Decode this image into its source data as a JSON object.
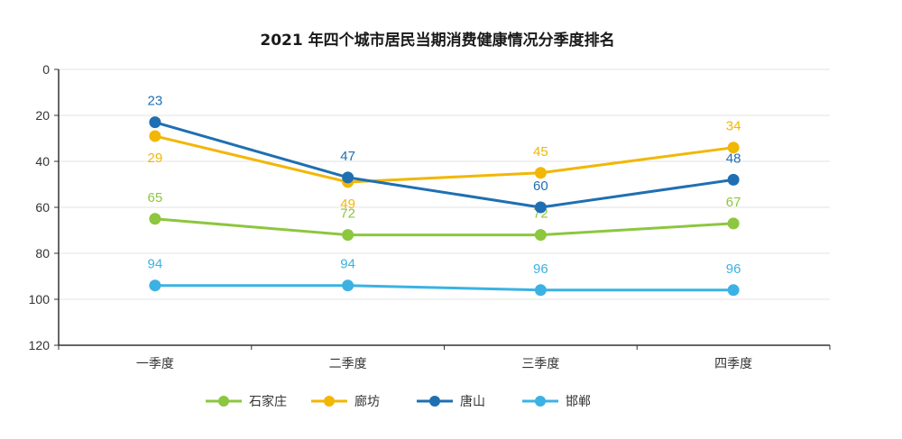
{
  "chart_data": {
    "type": "line",
    "title": "2021 年四个城市居民当期消费健康情况分季度排名",
    "xlabel": "",
    "ylabel": "",
    "categories": [
      "一季度",
      "二季度",
      "三季度",
      "四季度"
    ],
    "ylim": [
      0,
      120
    ],
    "y_inverted": true,
    "yticks": [
      0,
      20,
      40,
      60,
      80,
      100,
      120
    ],
    "grid": true,
    "legend_position": "bottom",
    "series": [
      {
        "name": "石家庄",
        "color": "#8dc63f",
        "values": [
          65,
          72,
          72,
          67
        ],
        "label_pos": [
          "above",
          "above",
          "above",
          "above"
        ]
      },
      {
        "name": "廊坊",
        "color": "#f2b705",
        "values": [
          29,
          49,
          45,
          34
        ],
        "label_pos": [
          "below",
          "below",
          "above",
          "above"
        ]
      },
      {
        "name": "唐山",
        "color": "#1f6fb2",
        "values": [
          23,
          47,
          60,
          48
        ],
        "label_pos": [
          "above",
          "above",
          "above",
          "above"
        ]
      },
      {
        "name": "邯郸",
        "color": "#3bb2e3",
        "values": [
          94,
          94,
          96,
          96
        ],
        "label_pos": [
          "above",
          "above",
          "above",
          "above"
        ]
      }
    ]
  }
}
